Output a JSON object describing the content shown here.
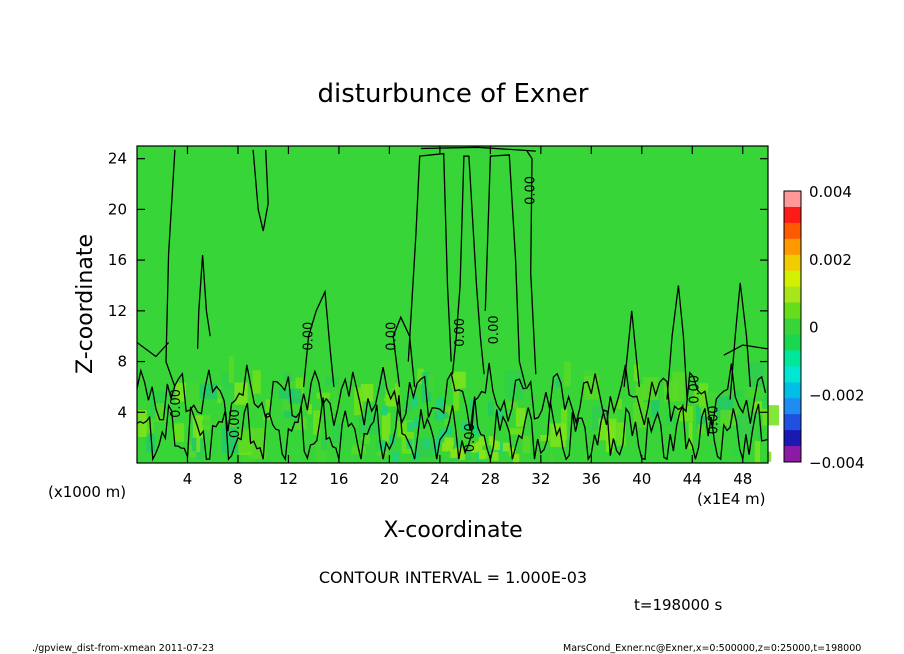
{
  "chart_data": {
    "type": "heatmap",
    "title": "disturbunce of Exner",
    "xlabel": "X-coordinate",
    "ylabel": "Z-coordinate",
    "x_unit_label": "(x1000 m)",
    "x_scale_label": "(x1E4 m)",
    "x_ticks": [
      4,
      8,
      12,
      16,
      20,
      24,
      28,
      32,
      36,
      40,
      44,
      48
    ],
    "y_ticks": [
      4,
      8,
      12,
      16,
      20,
      24
    ],
    "xlim": [
      0,
      50
    ],
    "ylim": [
      0,
      25
    ],
    "colorbar": {
      "range": [
        -0.004,
        0.004
      ],
      "tick_labels": [
        "0.004",
        "0.002",
        "0",
        "−0.002",
        "−0.004"
      ],
      "tick_values": [
        0.004,
        0.002,
        0,
        -0.002,
        -0.004
      ],
      "levels": [
        -0.004,
        -0.0035,
        -0.003,
        -0.0025,
        -0.002,
        -0.0015,
        -0.001,
        -0.0005,
        0,
        0.0005,
        0.001,
        0.0015,
        0.002,
        0.0025,
        0.003,
        0.0035
      ],
      "colors": [
        "#8c1aa6",
        "#1a1ab3",
        "#2050e0",
        "#1e8cf0",
        "#00bfe6",
        "#00e6d2",
        "#00e69a",
        "#1ad750",
        "#38d538",
        "#66dd1a",
        "#a6e61a",
        "#d2f000",
        "#f0cc00",
        "#ff9900",
        "#ff5a00",
        "#ff1a1a",
        "#ff9999"
      ]
    },
    "contour_label": "0.00",
    "contour_interval_text": "CONTOUR INTERVAL = 1.000E-03",
    "time_text": "t=198000 s"
  },
  "footer": {
    "left": "./gpview_dist-from-xmean 2011-07-23",
    "right": "MarsCond_Exner.nc@Exner,x=0:500000,z=0:25000,t=198000"
  },
  "colors": {
    "background_field": "#38d538",
    "contour": "#000000"
  }
}
